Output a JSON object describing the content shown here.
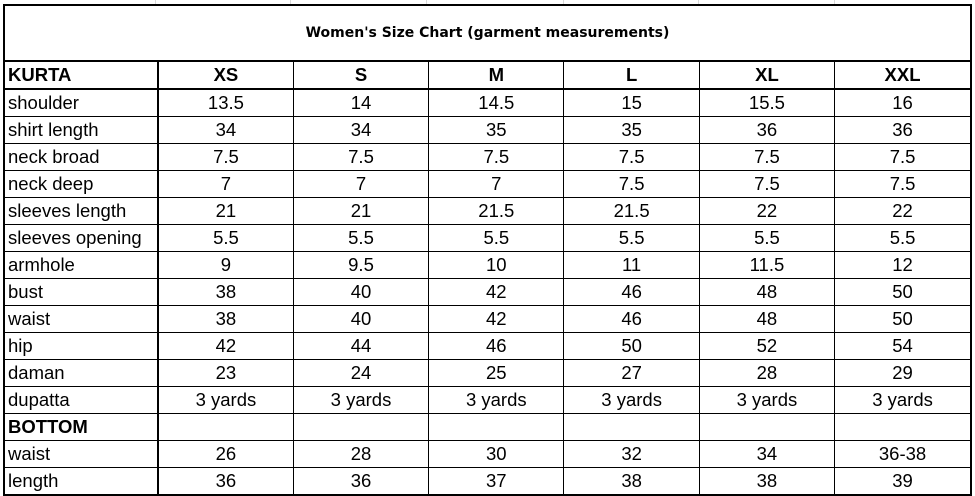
{
  "title": "Women's Size Chart (garment measurements)",
  "kurta": {
    "section_label": "KURTA",
    "sizes": [
      "XS",
      "S",
      "M",
      "L",
      "XL",
      "XXL"
    ],
    "rows": [
      {
        "label": "shoulder",
        "values": [
          "13.5",
          "14",
          "14.5",
          "15",
          "15.5",
          "16"
        ]
      },
      {
        "label": "shirt length",
        "values": [
          "34",
          "34",
          "35",
          "35",
          "36",
          "36"
        ]
      },
      {
        "label": "neck broad",
        "values": [
          "7.5",
          "7.5",
          "7.5",
          "7.5",
          "7.5",
          "7.5"
        ]
      },
      {
        "label": "neck deep",
        "values": [
          "7",
          "7",
          "7",
          "7.5",
          "7.5",
          "7.5"
        ]
      },
      {
        "label": "sleeves length",
        "values": [
          "21",
          "21",
          "21.5",
          "21.5",
          "22",
          "22"
        ]
      },
      {
        "label": "sleeves opening",
        "values": [
          "5.5",
          "5.5",
          "5.5",
          "5.5",
          "5.5",
          "5.5"
        ]
      },
      {
        "label": "armhole",
        "values": [
          "9",
          "9.5",
          "10",
          "11",
          "11.5",
          "12"
        ]
      },
      {
        "label": "bust",
        "values": [
          "38",
          "40",
          "42",
          "46",
          "48",
          "50"
        ]
      },
      {
        "label": "waist",
        "values": [
          "38",
          "40",
          "42",
          "46",
          "48",
          "50"
        ]
      },
      {
        "label": "hip",
        "values": [
          "42",
          "44",
          "46",
          "50",
          "52",
          "54"
        ]
      },
      {
        "label": "daman",
        "values": [
          "23",
          "24",
          "25",
          "27",
          "28",
          "29"
        ]
      },
      {
        "label": "dupatta",
        "values": [
          "3 yards",
          "3 yards",
          "3 yards",
          "3 yards",
          "3 yards",
          "3 yards"
        ]
      }
    ]
  },
  "bottom": {
    "section_label": "BOTTOM",
    "rows": [
      {
        "label": "waist",
        "values": [
          "26",
          "28",
          "30",
          "32",
          "34",
          "36-38"
        ]
      },
      {
        "label": "length",
        "values": [
          "36",
          "36",
          "37",
          "38",
          "38",
          "39"
        ]
      }
    ]
  }
}
